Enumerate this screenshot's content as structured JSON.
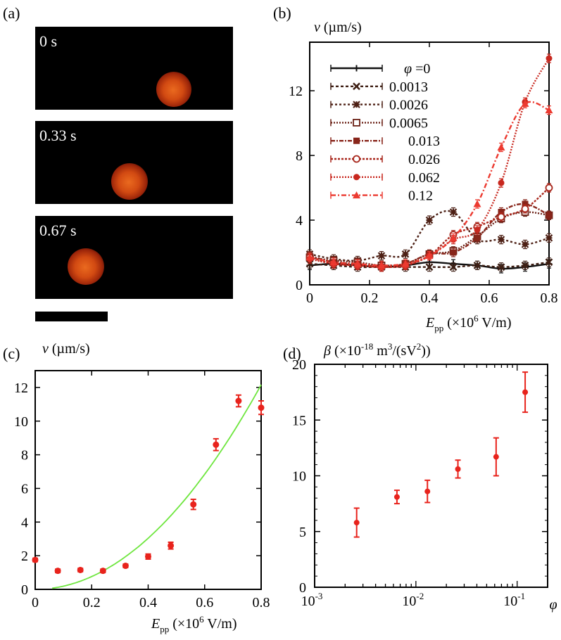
{
  "panel_a": {
    "label": "(a)",
    "frames": [
      {
        "time": "0 s"
      },
      {
        "time": "0.33 s"
      },
      {
        "time": "0.67 s"
      }
    ]
  },
  "chart_data": [
    {
      "panel": "(b)",
      "type": "line",
      "ylabel": "v (µm/s)",
      "xlabel": "E_pp (×10^6 V/m)",
      "xlim": [
        0,
        0.8
      ],
      "ylim": [
        0,
        15
      ],
      "xticks": [
        "0",
        "0.2",
        "0.4",
        "0.6",
        "0.8"
      ],
      "yticks": [
        "0",
        "4",
        "8",
        "12"
      ],
      "legend_title": "φ =0",
      "legend_placement": "top-left",
      "x": [
        0,
        0.08,
        0.16,
        0.24,
        0.32,
        0.4,
        0.48,
        0.56,
        0.64,
        0.72,
        0.8
      ],
      "series": [
        {
          "name": "φ =0",
          "color": "#111111",
          "marker": "plus",
          "dash": "solid",
          "values": [
            1.2,
            1.3,
            1.2,
            1.1,
            1.2,
            1.4,
            1.3,
            1.2,
            1.0,
            1.1,
            1.3
          ]
        },
        {
          "name": "0.0013",
          "color": "#3e1f14",
          "marker": "x",
          "dash": "4,3",
          "values": [
            1.3,
            1.2,
            1.1,
            1.1,
            1.1,
            1.1,
            1.1,
            1.2,
            1.1,
            1.2,
            1.4
          ]
        },
        {
          "name": "0.0026",
          "color": "#4d2015",
          "marker": "star",
          "dash": "3,3",
          "values": [
            1.9,
            1.6,
            1.5,
            1.8,
            1.9,
            4.0,
            4.5,
            2.8,
            2.8,
            2.5,
            2.9
          ]
        },
        {
          "name": "0.0065",
          "color": "#6b2116",
          "marker": "square-open",
          "dash": "2,2",
          "values": [
            1.7,
            1.5,
            1.4,
            1.2,
            1.3,
            1.9,
            2.1,
            3.0,
            4.1,
            4.5,
            4.3
          ]
        },
        {
          "name": "0.013",
          "color": "#88251a",
          "marker": "square",
          "dash": "6,2,2,2",
          "values": [
            1.8,
            1.4,
            1.3,
            1.1,
            1.3,
            1.9,
            2.0,
            2.9,
            4.5,
            5.0,
            4.3
          ]
        },
        {
          "name": "0.026",
          "color": "#a8261b",
          "marker": "circle-open",
          "dash": "3,2",
          "values": [
            1.7,
            1.3,
            1.2,
            1.1,
            1.2,
            1.8,
            3.1,
            3.6,
            4.2,
            4.7,
            6.0
          ]
        },
        {
          "name": "0.062",
          "color": "#c8281f",
          "marker": "circle",
          "dash": "2,2",
          "values": [
            1.6,
            1.3,
            1.2,
            1.1,
            1.2,
            1.8,
            2.8,
            3.4,
            6.3,
            11.3,
            14.0
          ]
        },
        {
          "name": "0.12",
          "color": "#ec3a30",
          "marker": "triangle",
          "dash": "7,3,2,3",
          "values": [
            1.7,
            1.4,
            1.3,
            1.2,
            1.3,
            1.8,
            2.9,
            5.0,
            8.5,
            11.2,
            10.8
          ]
        }
      ]
    },
    {
      "panel": "(c)",
      "type": "scatter",
      "ylabel": "v (µm/s)",
      "xlabel": "E_pp (×10^6 V/m)",
      "xlim": [
        0,
        0.8
      ],
      "ylim": [
        0,
        13
      ],
      "xticks": [
        "0",
        "0.2",
        "0.4",
        "0.6",
        "0.8"
      ],
      "yticks": [
        "0",
        "2",
        "4",
        "6",
        "8",
        "10",
        "12"
      ],
      "x": [
        0,
        0.08,
        0.16,
        0.24,
        0.32,
        0.4,
        0.48,
        0.56,
        0.64,
        0.72,
        0.8
      ],
      "values": [
        1.75,
        1.1,
        1.15,
        1.1,
        1.4,
        1.95,
        2.6,
        5.05,
        8.6,
        11.2,
        10.8
      ],
      "errors": [
        0.1,
        0.1,
        0.1,
        0.1,
        0.1,
        0.15,
        0.2,
        0.3,
        0.35,
        0.35,
        0.4
      ],
      "point_color": "#e8231c",
      "fit": {
        "color": "#6ee63e",
        "coefficient": 19.0,
        "power": 2
      }
    },
    {
      "panel": "(d)",
      "type": "scatter",
      "ylabel": "β (×10^-18 m^3/(sV^2))",
      "xlabel": "φ",
      "xscale": "log",
      "xlim": [
        0.001,
        0.2
      ],
      "ylim": [
        0,
        20
      ],
      "yticks": [
        "0",
        "5",
        "10",
        "15",
        "20"
      ],
      "xticks": [
        "10^-3",
        "10^-2",
        "10^-1"
      ],
      "x": [
        0.0026,
        0.0065,
        0.013,
        0.026,
        0.062,
        0.12
      ],
      "values": [
        5.8,
        8.1,
        8.6,
        10.6,
        11.7,
        17.5
      ],
      "errors": [
        1.3,
        0.6,
        1.0,
        0.8,
        1.7,
        1.8
      ],
      "point_color": "#e8231c"
    }
  ]
}
